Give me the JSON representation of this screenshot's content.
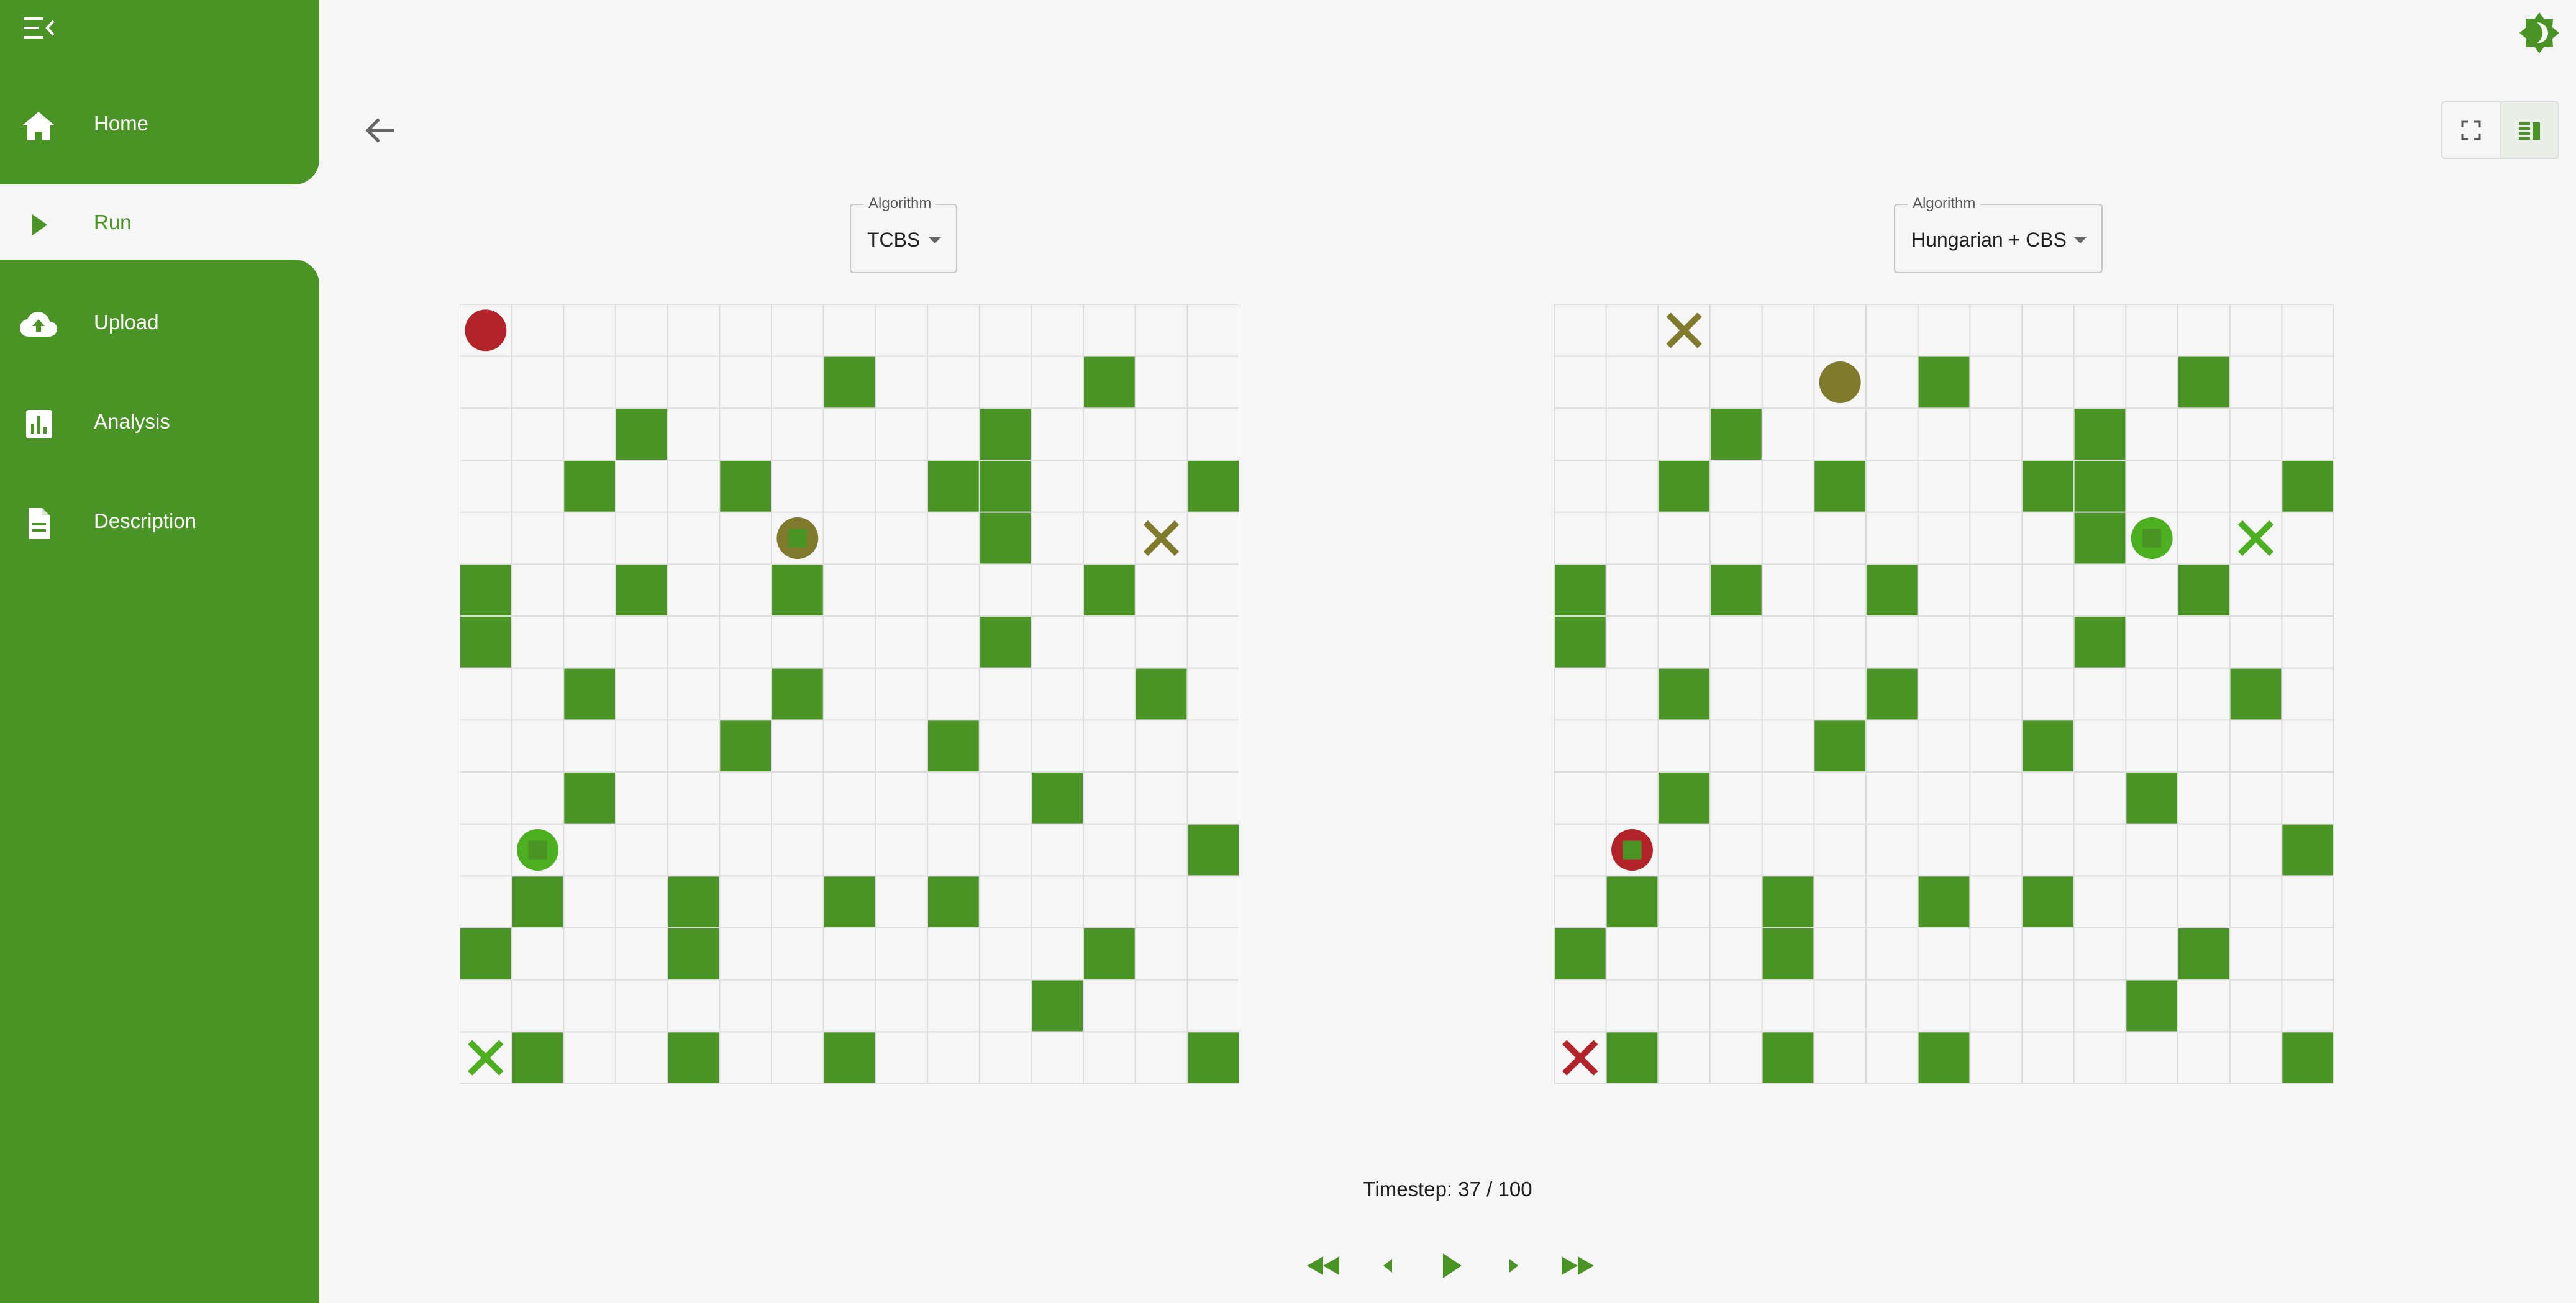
{
  "sidebar": {
    "items": [
      {
        "label": "Home",
        "icon": "home-icon"
      },
      {
        "label": "Run",
        "icon": "play-icon",
        "active": true
      },
      {
        "label": "Upload",
        "icon": "cloud-upload-icon"
      },
      {
        "label": "Analysis",
        "icon": "bar-chart-icon"
      },
      {
        "label": "Description",
        "icon": "document-icon"
      }
    ]
  },
  "colors": {
    "accent": "#4a9425",
    "obstacle": "#4a9425",
    "agent_red": "#b3242a",
    "agent_olive": "#7f7a2c",
    "agent_green": "#4caf1f",
    "grid_line": "#dcdcdc",
    "cell": "#f6f6f6"
  },
  "grid_size": 15,
  "obstacles": [
    [
      1,
      7
    ],
    [
      1,
      12
    ],
    [
      2,
      3
    ],
    [
      2,
      10
    ],
    [
      3,
      2
    ],
    [
      3,
      5
    ],
    [
      3,
      9
    ],
    [
      3,
      10
    ],
    [
      3,
      14
    ],
    [
      4,
      10
    ],
    [
      5,
      0
    ],
    [
      5,
      3
    ],
    [
      5,
      6
    ],
    [
      5,
      12
    ],
    [
      6,
      0
    ],
    [
      6,
      10
    ],
    [
      7,
      2
    ],
    [
      7,
      6
    ],
    [
      7,
      13
    ],
    [
      8,
      5
    ],
    [
      8,
      9
    ],
    [
      9,
      2
    ],
    [
      9,
      11
    ],
    [
      10,
      14
    ],
    [
      11,
      1
    ],
    [
      11,
      4
    ],
    [
      11,
      7
    ],
    [
      11,
      9
    ],
    [
      12,
      0
    ],
    [
      12,
      4
    ],
    [
      12,
      12
    ],
    [
      13,
      11
    ],
    [
      14,
      1
    ],
    [
      14,
      4
    ],
    [
      14,
      7
    ],
    [
      14,
      14
    ]
  ],
  "panels": [
    {
      "algorithm_label": "Algorithm",
      "algorithm": "TCBS",
      "agents": [
        {
          "color": "red",
          "row": 0,
          "col": 0,
          "carrying": false
        },
        {
          "color": "olive",
          "row": 4,
          "col": 6,
          "carrying": true
        },
        {
          "color": "green",
          "row": 10,
          "col": 1,
          "carrying": true
        }
      ],
      "goals": [
        {
          "color": "olive",
          "row": 4,
          "col": 13
        },
        {
          "color": "green",
          "row": 14,
          "col": 0
        }
      ]
    },
    {
      "algorithm_label": "Algorithm",
      "algorithm": "Hungarian + CBS",
      "agents": [
        {
          "color": "olive",
          "row": 1,
          "col": 5,
          "carrying": false
        },
        {
          "color": "green",
          "row": 4,
          "col": 11,
          "carrying": true
        },
        {
          "color": "red",
          "row": 10,
          "col": 1,
          "carrying": true
        }
      ],
      "goals": [
        {
          "color": "olive",
          "row": 0,
          "col": 2
        },
        {
          "color": "green",
          "row": 4,
          "col": 13
        },
        {
          "color": "red",
          "row": 14,
          "col": 0
        }
      ]
    }
  ],
  "timestep": {
    "label": "Timestep: 37 / 100",
    "current": 37,
    "total": 100
  },
  "playback": [
    "skip-back-icon",
    "step-back-icon",
    "play-icon",
    "step-forward-icon",
    "skip-forward-icon"
  ]
}
